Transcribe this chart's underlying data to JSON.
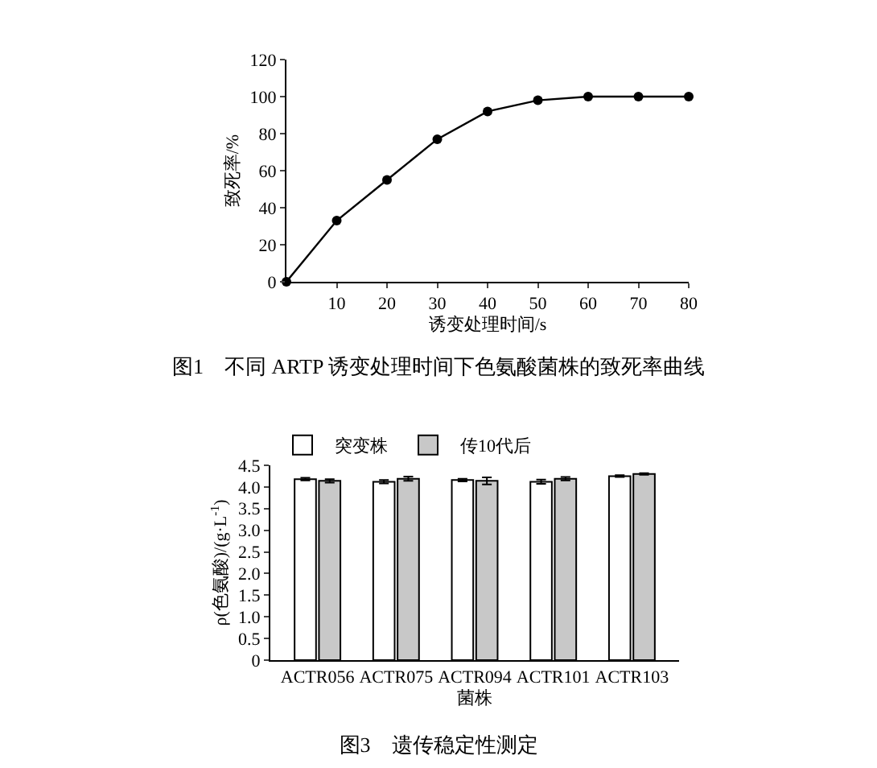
{
  "chart_data": [
    {
      "type": "line",
      "xlabel": "诱变处理时间/s",
      "ylabel": "致死率/%",
      "annotations": [
        "图1　不同 ARTP 诱变处理时间下色氨酸菌株的致死率曲线"
      ],
      "x": [
        0,
        10,
        20,
        30,
        40,
        50,
        60,
        70,
        80
      ],
      "series": [
        {
          "color": "#000000",
          "values": [
            0,
            33,
            55,
            77,
            92,
            98,
            100,
            100,
            100
          ]
        }
      ],
      "xlim": [
        0,
        80
      ],
      "xticks": [
        10,
        20,
        30,
        40,
        50,
        60,
        70,
        80
      ],
      "ylim": [
        0,
        120
      ],
      "yticks": [
        0,
        20,
        40,
        60,
        80,
        100,
        120
      ],
      "grid": false,
      "legend": false,
      "marker": "circle",
      "line_style": "solid"
    },
    {
      "type": "bar",
      "xlabel": "菌株",
      "ylabel": "ρ(色氨酸)/(g·L$^{-1}$)",
      "annotations": [
        "图3　遗传稳定性测定"
      ],
      "categories": [
        "ACTR056",
        "ACTR075",
        "ACTR094",
        "ACTR101",
        "ACTR103"
      ],
      "series": [
        {
          "name": "突变株",
          "color": "#ffffff",
          "values": [
            4.18,
            4.12,
            4.16,
            4.12,
            4.25
          ],
          "errors": [
            0.03,
            0.04,
            0.03,
            0.05,
            0.02
          ]
        },
        {
          "name": "传10代后",
          "color": "#c8c8c8",
          "values": [
            4.14,
            4.19,
            4.14,
            4.19,
            4.3
          ],
          "errors": [
            0.04,
            0.05,
            0.08,
            0.04,
            0.02
          ]
        }
      ],
      "ylim": [
        0,
        4.5
      ],
      "yticks": [
        0,
        0.5,
        {
          "value": 1,
          "label": "1.0"
        },
        1.5,
        {
          "value": 2,
          "label": "2.0"
        },
        2.5,
        {
          "value": 3,
          "label": "3.0"
        },
        3.5,
        {
          "value": 4,
          "label": "4.0"
        },
        4.5
      ],
      "grid": false,
      "legend": "top left"
    }
  ]
}
